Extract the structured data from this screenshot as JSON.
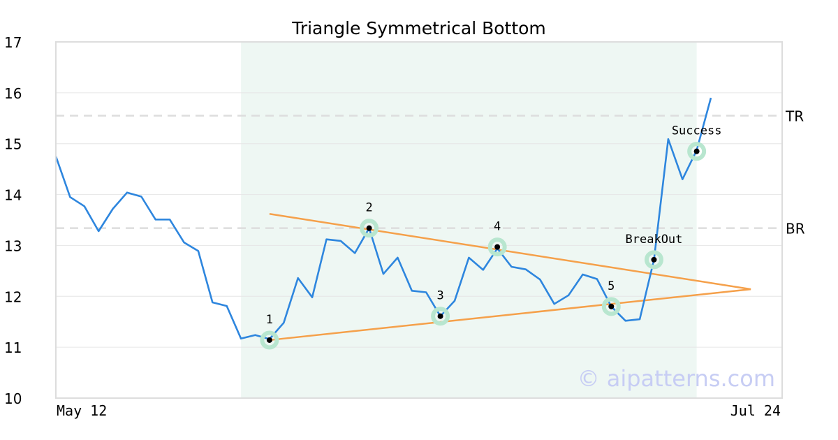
{
  "chart_data": {
    "type": "line",
    "title": "Triangle Symmetrical Bottom",
    "xlabel": "",
    "ylabel": "",
    "ylim": [
      10,
      17
    ],
    "yticks": [
      "10",
      "11",
      "12",
      "13",
      "14",
      "15",
      "16",
      "17"
    ],
    "xticks": [
      "May 12",
      "Jul 24"
    ],
    "grid": "horizontal",
    "series": [
      {
        "values": [
          14.75,
          13.95,
          13.77,
          13.28,
          13.72,
          14.04,
          13.96,
          13.51,
          13.51,
          13.06,
          12.89,
          11.88,
          11.81,
          11.17,
          11.24,
          11.16,
          11.48,
          12.36,
          11.98,
          13.12,
          13.09,
          12.85,
          13.34,
          12.44,
          12.76,
          12.11,
          12.08,
          11.61,
          11.91,
          12.76,
          12.52,
          12.94,
          12.58,
          12.53,
          12.33,
          11.85,
          12.02,
          12.43,
          12.34,
          11.8,
          11.52,
          11.55,
          12.72,
          15.09,
          14.3,
          14.87,
          15.9
        ],
        "color": "#2e86de"
      }
    ],
    "pattern_region": {
      "start_index": 13,
      "end_index": 45,
      "color": "#eef7f3"
    },
    "trendlines": [
      {
        "from": [
          15,
          13.62
        ],
        "to": [
          48.8,
          12.14
        ],
        "color": "#f5a04a"
      },
      {
        "from": [
          15,
          11.14
        ],
        "to": [
          48.8,
          12.14
        ],
        "color": "#f5a04a"
      }
    ],
    "levels": [
      {
        "label": "TR",
        "value": 15.55
      },
      {
        "label": "BR",
        "value": 13.34
      }
    ],
    "points": [
      {
        "label": "1",
        "x": 15,
        "y": 11.14,
        "label_pos": "above"
      },
      {
        "label": "2",
        "x": 22,
        "y": 13.34,
        "label_pos": "above"
      },
      {
        "label": "3",
        "x": 27,
        "y": 11.61,
        "label_pos": "above"
      },
      {
        "label": "4",
        "x": 31,
        "y": 12.97,
        "label_pos": "above"
      },
      {
        "label": "5",
        "x": 39,
        "y": 11.8,
        "label_pos": "above"
      },
      {
        "label": "BreakOut",
        "x": 42,
        "y": 12.72,
        "label_pos": "above"
      },
      {
        "label": "Success",
        "x": 45,
        "y": 14.85,
        "label_pos": "above"
      }
    ],
    "watermark": "© aipatterns.com"
  }
}
